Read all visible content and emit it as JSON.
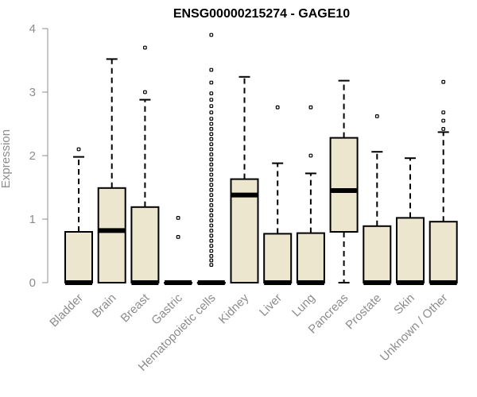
{
  "chart_data": {
    "type": "box",
    "title": "ENSG00000215274 - GAGE10",
    "xlabel": "",
    "ylabel": "Expression",
    "ylim": [
      0,
      4
    ],
    "yticks": [
      0,
      1,
      2,
      3,
      4
    ],
    "grid": false,
    "colors": {
      "box_fill": "#ede6ce",
      "box_stroke": "#000000",
      "axis": "#8c8c8c"
    },
    "categories": [
      "Bladder",
      "Brain",
      "Breast",
      "Gastric",
      "Hematopoietic cells",
      "Kidney",
      "Liver",
      "Lung",
      "Pancreas",
      "Prostate",
      "Skin",
      "Unknown / Other"
    ],
    "boxes": [
      {
        "category": "Bladder",
        "min": 0,
        "q1": 0,
        "median": 0,
        "q3": 0.8,
        "max": 1.98,
        "outliers": [
          2.1
        ]
      },
      {
        "category": "Brain",
        "min": 0,
        "q1": 0,
        "median": 0.82,
        "q3": 1.49,
        "max": 3.52,
        "outliers": []
      },
      {
        "category": "Breast",
        "min": 0,
        "q1": 0,
        "median": 0,
        "q3": 1.19,
        "max": 2.88,
        "outliers": [
          3.0,
          3.7
        ]
      },
      {
        "category": "Gastric",
        "min": 0,
        "q1": 0,
        "median": 0,
        "q3": 0,
        "max": 0,
        "outliers": [
          0.72,
          1.02
        ]
      },
      {
        "category": "Hematopoietic cells",
        "min": 0,
        "q1": 0,
        "median": 0,
        "q3": 0,
        "max": 0,
        "outliers": [
          0.28,
          0.35,
          0.42,
          0.5,
          0.58,
          0.66,
          0.74,
          0.82,
          0.9,
          0.98,
          1.06,
          1.14,
          1.22,
          1.3,
          1.38,
          1.46,
          1.54,
          1.62,
          1.7,
          1.78,
          1.86,
          1.94,
          2.02,
          2.1,
          2.18,
          2.26,
          2.34,
          2.42,
          2.5,
          2.58,
          2.68,
          2.78,
          2.88,
          2.98,
          3.15,
          3.35,
          3.9
        ]
      },
      {
        "category": "Kidney",
        "min": 0,
        "q1": 0,
        "median": 1.38,
        "q3": 1.63,
        "max": 3.24,
        "outliers": []
      },
      {
        "category": "Liver",
        "min": 0,
        "q1": 0,
        "median": 0,
        "q3": 0.77,
        "max": 1.88,
        "outliers": [
          2.76
        ]
      },
      {
        "category": "Lung",
        "min": 0,
        "q1": 0,
        "median": 0,
        "q3": 0.78,
        "max": 1.72,
        "outliers": [
          2.0,
          2.76
        ]
      },
      {
        "category": "Pancreas",
        "min": 0,
        "q1": 0.8,
        "median": 1.45,
        "q3": 2.28,
        "max": 3.18,
        "outliers": []
      },
      {
        "category": "Prostate",
        "min": 0,
        "q1": 0,
        "median": 0,
        "q3": 0.89,
        "max": 2.06,
        "outliers": [
          2.62
        ]
      },
      {
        "category": "Skin",
        "min": 0,
        "q1": 0,
        "median": 0,
        "q3": 1.02,
        "max": 1.96,
        "outliers": []
      },
      {
        "category": "Unknown / Other",
        "min": 0,
        "q1": 0,
        "median": 0,
        "q3": 0.96,
        "max": 2.37,
        "outliers": [
          2.42,
          2.55,
          2.68,
          3.16
        ]
      }
    ]
  }
}
